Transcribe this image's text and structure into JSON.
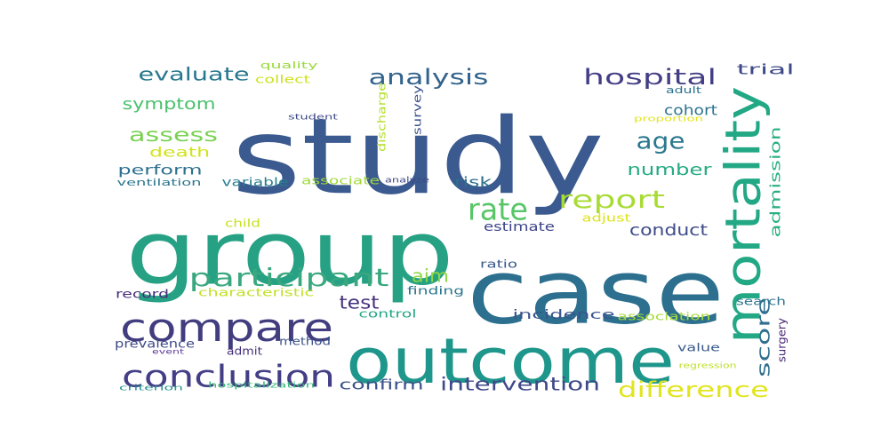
{
  "words": [
    {
      "text": "study",
      "color": "#3b5a8f"
    },
    {
      "text": "group",
      "color": "#27a184"
    },
    {
      "text": "case",
      "color": "#2c6f8e"
    },
    {
      "text": "outcome",
      "color": "#1f968b"
    },
    {
      "text": "mortality",
      "color": "#22a884"
    },
    {
      "text": "compare",
      "color": "#423d7f"
    },
    {
      "text": "conclusion",
      "color": "#433e85"
    },
    {
      "text": "participant",
      "color": "#3aa87f"
    },
    {
      "text": "rate",
      "color": "#56c667"
    },
    {
      "text": "report",
      "color": "#a8db34"
    },
    {
      "text": "difference",
      "color": "#e1e51d"
    },
    {
      "text": "analysis",
      "color": "#33648d"
    },
    {
      "text": "hospital",
      "color": "#433e85"
    },
    {
      "text": "evaluate",
      "color": "#2a788e"
    },
    {
      "text": "symptom",
      "color": "#4ac16d"
    },
    {
      "text": "assess",
      "color": "#7ad151"
    },
    {
      "text": "age",
      "color": "#2a788e"
    },
    {
      "text": "intervention",
      "color": "#3f4889"
    },
    {
      "text": "score",
      "color": "#2e6e8e"
    },
    {
      "text": "admission",
      "color": "#29af7f"
    },
    {
      "text": "test",
      "color": "#46317e"
    },
    {
      "text": "aim",
      "color": "#8fd744"
    },
    {
      "text": "number",
      "color": "#25ab82"
    },
    {
      "text": "conduct",
      "color": "#3e4c8a"
    },
    {
      "text": "trial",
      "color": "#3e4989"
    },
    {
      "text": "cohort",
      "color": "#2b748e"
    },
    {
      "text": "confirm",
      "color": "#3b528b"
    },
    {
      "text": "risk",
      "color": "#2d708e"
    },
    {
      "text": "estimate",
      "color": "#3f4788"
    },
    {
      "text": "incidence",
      "color": "#3a548c"
    },
    {
      "text": "death",
      "color": "#d2e21b"
    },
    {
      "text": "perform",
      "color": "#2d708e"
    },
    {
      "text": "variable",
      "color": "#287d8e"
    },
    {
      "text": "prevalence",
      "color": "#3e4a89"
    },
    {
      "text": "record",
      "color": "#472d7b"
    },
    {
      "text": "finding",
      "color": "#2a768e"
    },
    {
      "text": "characteristic",
      "color": "#c2df23"
    },
    {
      "text": "association",
      "color": "#a5db36"
    },
    {
      "text": "control",
      "color": "#22a785"
    },
    {
      "text": "method",
      "color": "#3b528b"
    },
    {
      "text": "admit",
      "color": "#472f7d"
    },
    {
      "text": "value",
      "color": "#38598c"
    },
    {
      "text": "search",
      "color": "#2c738e"
    },
    {
      "text": "surgery",
      "color": "#482576"
    },
    {
      "text": "associate",
      "color": "#a0da39"
    },
    {
      "text": "ventilation",
      "color": "#2b758e"
    },
    {
      "text": "child",
      "color": "#c8e020"
    },
    {
      "text": "adjust",
      "color": "#dde318"
    },
    {
      "text": "quality",
      "color": "#9bd93c"
    },
    {
      "text": "collect",
      "color": "#cde11d"
    },
    {
      "text": "discharge",
      "color": "#b5de2b"
    },
    {
      "text": "survey",
      "color": "#3b528b"
    },
    {
      "text": "adult",
      "color": "#2c718e"
    },
    {
      "text": "proportion",
      "color": "#e2e418"
    },
    {
      "text": "student",
      "color": "#3e4989"
    },
    {
      "text": "analyze",
      "color": "#3f4889"
    },
    {
      "text": "ratio",
      "color": "#38598c"
    },
    {
      "text": "event",
      "color": "#5e3c99"
    },
    {
      "text": "criterion",
      "color": "#21918c"
    },
    {
      "text": "hospitalization",
      "color": "#35b779"
    },
    {
      "text": "regression",
      "color": "#bddf26"
    }
  ]
}
